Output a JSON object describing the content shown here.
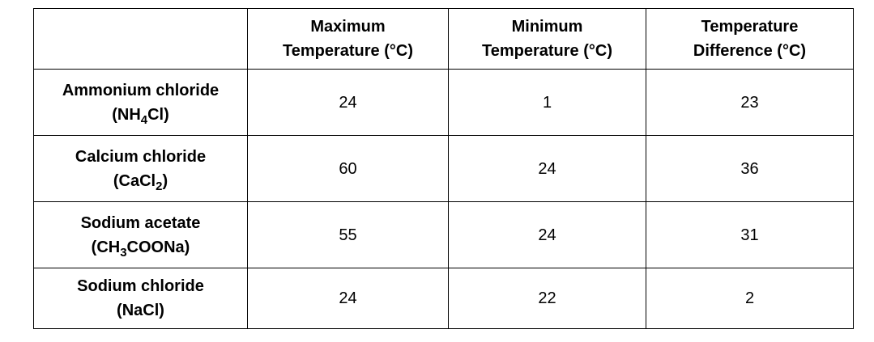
{
  "table": {
    "headers": [
      [],
      [
        "Maximum",
        "Temperature (°C)"
      ],
      [
        "Minimum",
        "Temperature (°C)"
      ],
      [
        "Temperature",
        "Difference (°C)"
      ]
    ],
    "rows": [
      {
        "name": "Ammonium chloride",
        "formula": [
          "(NH",
          "4",
          "Cl)"
        ],
        "values": [
          24,
          1,
          23
        ]
      },
      {
        "name": "Calcium chloride",
        "formula": [
          "(CaCl",
          "2",
          ")"
        ],
        "values": [
          60,
          24,
          36
        ]
      },
      {
        "name": "Sodium acetate",
        "formula": [
          "(CH",
          "3",
          "COONa)"
        ],
        "values": [
          55,
          24,
          31
        ]
      },
      {
        "name": "Sodium chloride",
        "formula": [
          "(NaCl)"
        ],
        "values": [
          24,
          22,
          2
        ]
      }
    ]
  }
}
